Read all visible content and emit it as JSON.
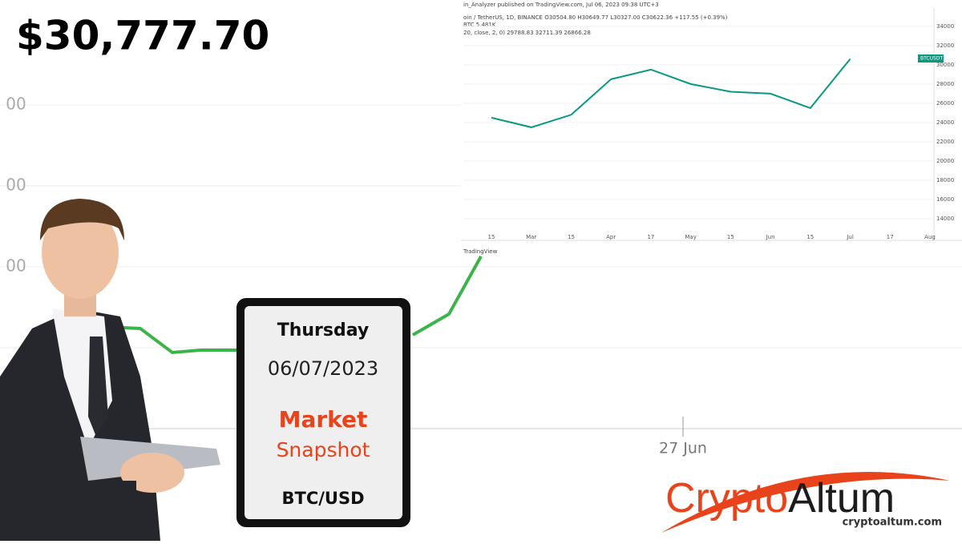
{
  "price": "$30,777.70",
  "background_axis": {
    "y_labels": [
      "00",
      "00",
      "00"
    ],
    "x_label": "27 Jun"
  },
  "card": {
    "day": "Thursday",
    "date": "06/07/2023",
    "title": "Market",
    "subtitle": "Snapshot",
    "pair": "BTC/USD"
  },
  "logo": {
    "name_part1": "Crypto",
    "name_part2": "Altum",
    "url": "cryptoaltum.com"
  },
  "inset": {
    "header": [
      "in_Analyzer published on TradingView.com, Jul 06, 2023 09:38 UTC+3",
      "oin / TetherUS, 1D, BINANCE  O30504.80  H30649.77  L30327.00  C30622.36  +117.55 (+0.39%)",
      "BTC  5.481K",
      "20, close, 2, 0)  29788.83  32711.39  26866.28"
    ],
    "footer": "TradingView",
    "price_tag": "BTCUSDT",
    "chart_data": {
      "type": "line",
      "color": "#089981",
      "categories": [
        "15",
        "Mar",
        "15",
        "Apr",
        "17",
        "May",
        "15",
        "Jun",
        "15",
        "Jul",
        "17",
        "Aug"
      ],
      "values": [
        24500,
        23500,
        24800,
        28500,
        29500,
        28000,
        27200,
        27000,
        25500,
        30600,
        null,
        null
      ],
      "ylim": [
        12750,
        35900
      ],
      "yticks": [
        14000,
        16000,
        18000,
        20000,
        22000,
        24000,
        26000,
        28000,
        30000,
        32000,
        34000
      ]
    }
  }
}
